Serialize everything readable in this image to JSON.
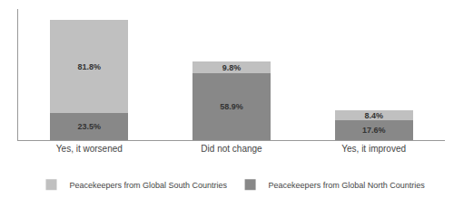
{
  "chart_data": {
    "type": "bar",
    "categories": [
      "Yes, it worsened",
      "Did not change",
      "Yes, it improved"
    ],
    "series": [
      {
        "name": "Peacekeepers from Global North Countries",
        "color": "#888888",
        "values": [
          23.5,
          58.9,
          17.6
        ],
        "value_labels": [
          "23.5%",
          "58.9%",
          "17.6%"
        ]
      },
      {
        "name": "Peacekeepers from Global South Countries",
        "color": "#c0c0c0",
        "values": [
          81.8,
          9.8,
          8.4
        ],
        "value_labels": [
          "81.8%",
          "9.8%",
          "8.4%"
        ]
      }
    ],
    "ylim": [
      0,
      115
    ],
    "yticks": [],
    "stacked": true,
    "data_labels": true,
    "tick_labels": "x",
    "grid": false,
    "legend": "bottom"
  }
}
